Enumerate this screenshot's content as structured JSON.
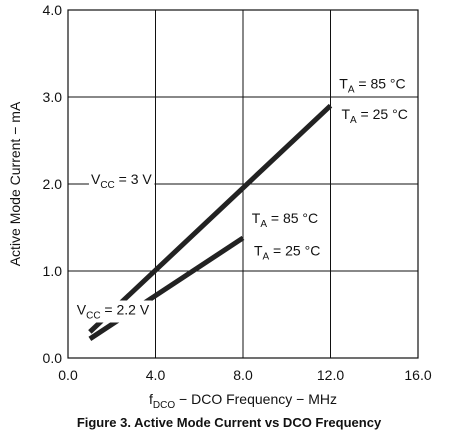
{
  "chart_data": {
    "type": "line",
    "xlabel": {
      "prefix": "f",
      "sub": "DCO",
      "rest": " − DCO Frequency − MHz"
    },
    "ylabel": "Active Mode Current − mA",
    "xlim": [
      0,
      16
    ],
    "ylim": [
      0,
      4
    ],
    "x_ticks": [
      "0.0",
      "4.0",
      "8.0",
      "12.0",
      "16.0"
    ],
    "y_ticks": [
      "0.0",
      "1.0",
      "2.0",
      "3.0",
      "4.0"
    ],
    "grid": true,
    "series": [
      {
        "name": "VCC = 3 V",
        "x": [
          1,
          12
        ],
        "y": [
          0.3,
          2.9
        ]
      },
      {
        "name": "VCC = 2.2 V",
        "x": [
          1,
          8
        ],
        "y": [
          0.22,
          1.38
        ]
      }
    ],
    "annotations": [
      {
        "id": "vcc3",
        "main": "V",
        "sub": "CC",
        "rest": " = 3 V",
        "x": 1.05,
        "y": 2.0
      },
      {
        "id": "ta85-3v",
        "main": "T",
        "sub": "A",
        "rest": " = 85 °C",
        "x": 12.4,
        "y": 3.1
      },
      {
        "id": "ta25-3v",
        "main": "T",
        "sub": "A",
        "rest": " = 25 °C",
        "x": 12.5,
        "y": 2.75
      },
      {
        "id": "ta85-22v",
        "main": "T",
        "sub": "A",
        "rest": " = 85 °C",
        "x": 8.4,
        "y": 1.55
      },
      {
        "id": "ta25-22v",
        "main": "T",
        "sub": "A",
        "rest": " = 25 °C",
        "x": 8.5,
        "y": 1.18
      },
      {
        "id": "vcc22",
        "main": "V",
        "sub": "CC",
        "rest": " = 2.2 V",
        "x": 0.4,
        "y": 0.5
      }
    ]
  },
  "caption": "Figure 3. Active Mode Current vs DCO Frequency"
}
